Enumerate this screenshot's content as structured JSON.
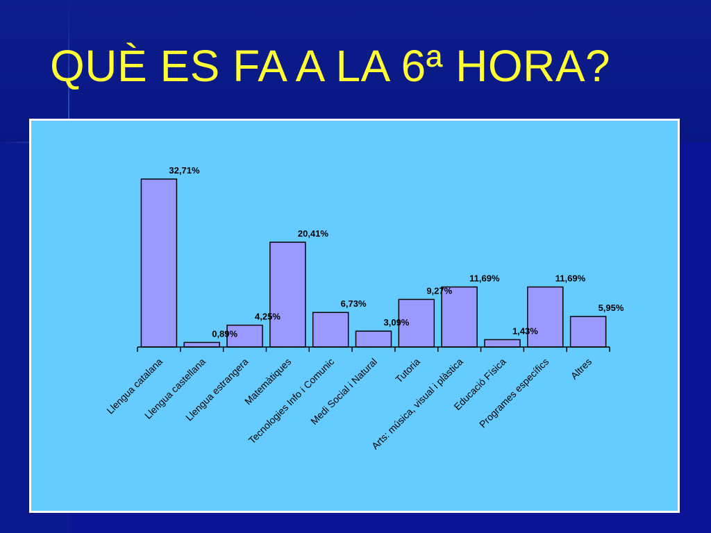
{
  "slide": {
    "title": "QUÈ ES FA A LA 6ª HORA?"
  },
  "colors": {
    "background": "#020a6e",
    "title": "#ffff33",
    "chart_panel": "#66ccff",
    "bar_fill": "#9999ff",
    "bar_stroke": "#000000"
  },
  "chart_data": {
    "type": "bar",
    "title": "",
    "xlabel": "",
    "ylabel": "",
    "ylim": [
      0,
      35
    ],
    "grid": false,
    "legend": "none",
    "categories": [
      "Llengua catalana",
      "Llengua castellana",
      "Llengua estrangera",
      "Matemàtiques",
      "Tecnologies Info i Comunic",
      "Medi Social i Natural",
      "Tutoria",
      "Arts: música, visual i plàstica",
      "Educació Física",
      "Programes específics",
      "Altres"
    ],
    "values": [
      32.71,
      0.89,
      4.25,
      20.41,
      6.73,
      3.09,
      9.27,
      11.69,
      1.43,
      11.69,
      5.95
    ],
    "data_labels": [
      "32,71%",
      "0,89%",
      "4,25%",
      "20,41%",
      "6,73%",
      "3,09%",
      "9,27%",
      "11,69%",
      "1,43%",
      "11,69%",
      "5,95%"
    ]
  }
}
